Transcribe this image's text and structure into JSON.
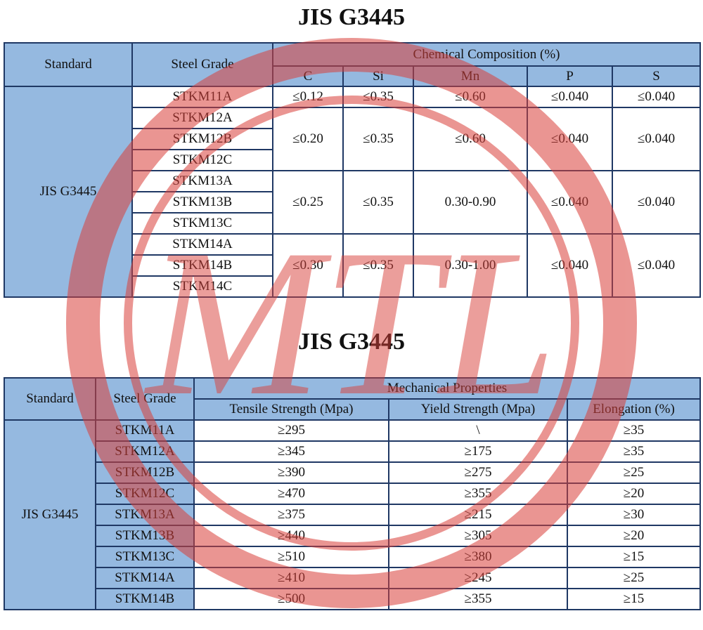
{
  "table1": {
    "title": "JIS G3445",
    "header": {
      "standard": "Standard",
      "steel_grade": "Steel Grade",
      "group": "Chemical Composition (%)",
      "columns": [
        "C",
        "Si",
        "Mn",
        "P",
        "S"
      ]
    },
    "standard": "JIS G3445",
    "groups": [
      {
        "grades": [
          "STKM11A"
        ],
        "values": [
          "≤0.12",
          "≤0.35",
          "≤0.60",
          "≤0.040",
          "≤0.040"
        ]
      },
      {
        "grades": [
          "STKM12A",
          "STKM12B",
          "STKM12C"
        ],
        "values": [
          "≤0.20",
          "≤0.35",
          "≤0.60",
          "≤0.040",
          "≤0.040"
        ]
      },
      {
        "grades": [
          "STKM13A",
          "STKM13B",
          "STKM13C"
        ],
        "values": [
          "≤0.25",
          "≤0.35",
          "0.30-0.90",
          "≤0.040",
          "≤0.040"
        ]
      },
      {
        "grades": [
          "STKM14A",
          "STKM14B",
          "STKM14C"
        ],
        "values": [
          "≤0.30",
          "≤0.35",
          "0.30-1.00",
          "≤0.040",
          "≤0.040"
        ]
      }
    ]
  },
  "table2": {
    "title": "JIS G3445",
    "header": {
      "standard": "Standard",
      "steel_grade": "Steel Grade",
      "group": "Mechanical Properties",
      "columns": [
        "Tensile Strength (Mpa)",
        "Yield Strength (Mpa)",
        "Elongation (%)"
      ]
    },
    "standard": "JIS G3445",
    "rows": [
      {
        "grade": "STKM11A",
        "values": [
          "≥295",
          "\\",
          "≥35"
        ]
      },
      {
        "grade": "STKM12A",
        "values": [
          "≥345",
          "≥175",
          "≥35"
        ]
      },
      {
        "grade": "STKM12B",
        "values": [
          "≥390",
          "≥275",
          "≥25"
        ]
      },
      {
        "grade": "STKM12C",
        "values": [
          "≥470",
          "≥355",
          "≥20"
        ]
      },
      {
        "grade": "STKM13A",
        "values": [
          "≥375",
          "≥215",
          "≥30"
        ]
      },
      {
        "grade": "STKM13B",
        "values": [
          "≥440",
          "≥305",
          "≥20"
        ]
      },
      {
        "grade": "STKM13C",
        "values": [
          "≥510",
          "≥380",
          "≥15"
        ]
      },
      {
        "grade": "STKM14A",
        "values": [
          "≥410",
          "≥245",
          "≥25"
        ]
      },
      {
        "grade": "STKM14B",
        "values": [
          "≥500",
          "≥355",
          "≥15"
        ]
      }
    ]
  },
  "watermark": "MTL"
}
